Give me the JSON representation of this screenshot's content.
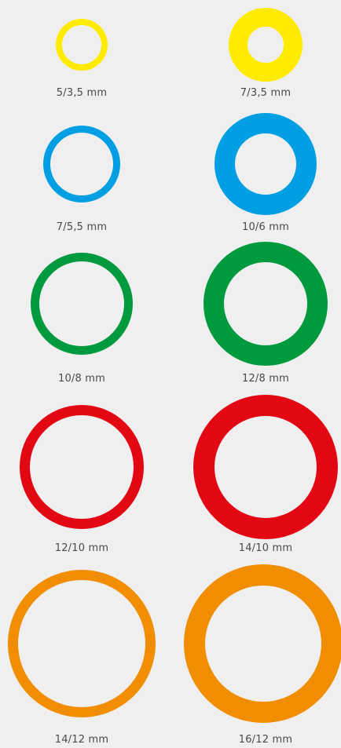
{
  "rings": [
    {
      "label": "5/3,5 mm",
      "color": "#FFEB00"
    },
    {
      "label": "7/3,5 mm",
      "color": "#FFEB00"
    },
    {
      "label": "7/5,5 mm",
      "color": "#009FE3"
    },
    {
      "label": "10/6 mm",
      "color": "#009FE3"
    },
    {
      "label": "10/8 mm",
      "color": "#009A3E"
    },
    {
      "label": "12/8 mm",
      "color": "#009A3E"
    },
    {
      "label": "12/10 mm",
      "color": "#E30613"
    },
    {
      "label": "14/10 mm",
      "color": "#E30613"
    },
    {
      "label": "14/12 mm",
      "color": "#F18D00"
    },
    {
      "label": "16/12 mm",
      "color": "#F18D00"
    }
  ]
}
